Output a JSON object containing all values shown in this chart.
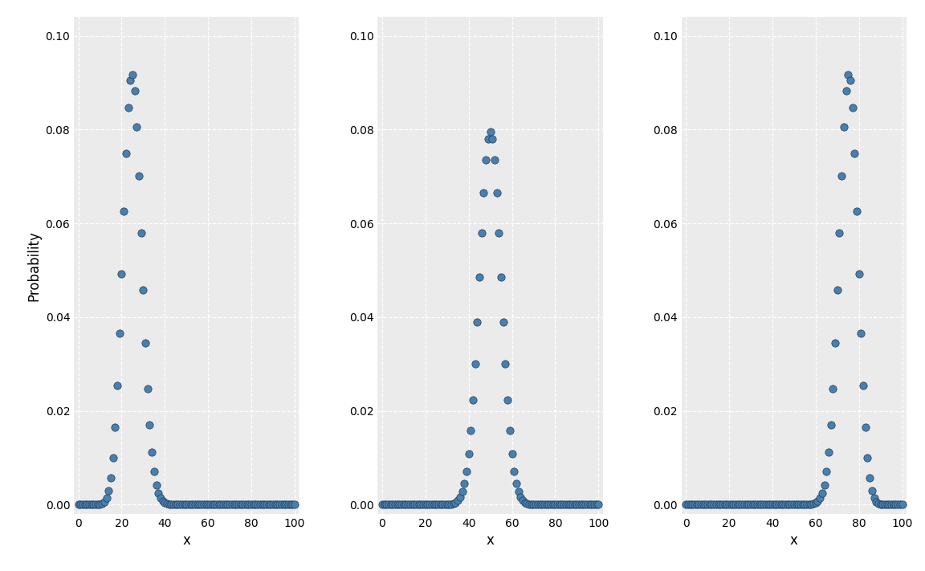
{
  "n": 100,
  "ps": [
    0.25,
    0.5,
    0.75
  ],
  "dot_color": "#4a7fad",
  "dot_edge_color": "#1a3a5c",
  "dot_size": 45,
  "dot_linewidth": 0.5,
  "background_color": "#ebebeb",
  "grid_color": "#ffffff",
  "grid_style": "--",
  "grid_alpha": 1.0,
  "xlabel": "x",
  "ylabel": "Probability",
  "ylim": [
    -0.002,
    0.104
  ],
  "xlim": [
    -2,
    102
  ],
  "yticks": [
    0.0,
    0.02,
    0.04,
    0.06,
    0.08,
    0.1
  ],
  "xticks": [
    0,
    20,
    40,
    60,
    80,
    100
  ],
  "tick_fontsize": 10,
  "label_fontsize": 12,
  "figure_bg": "#ffffff"
}
